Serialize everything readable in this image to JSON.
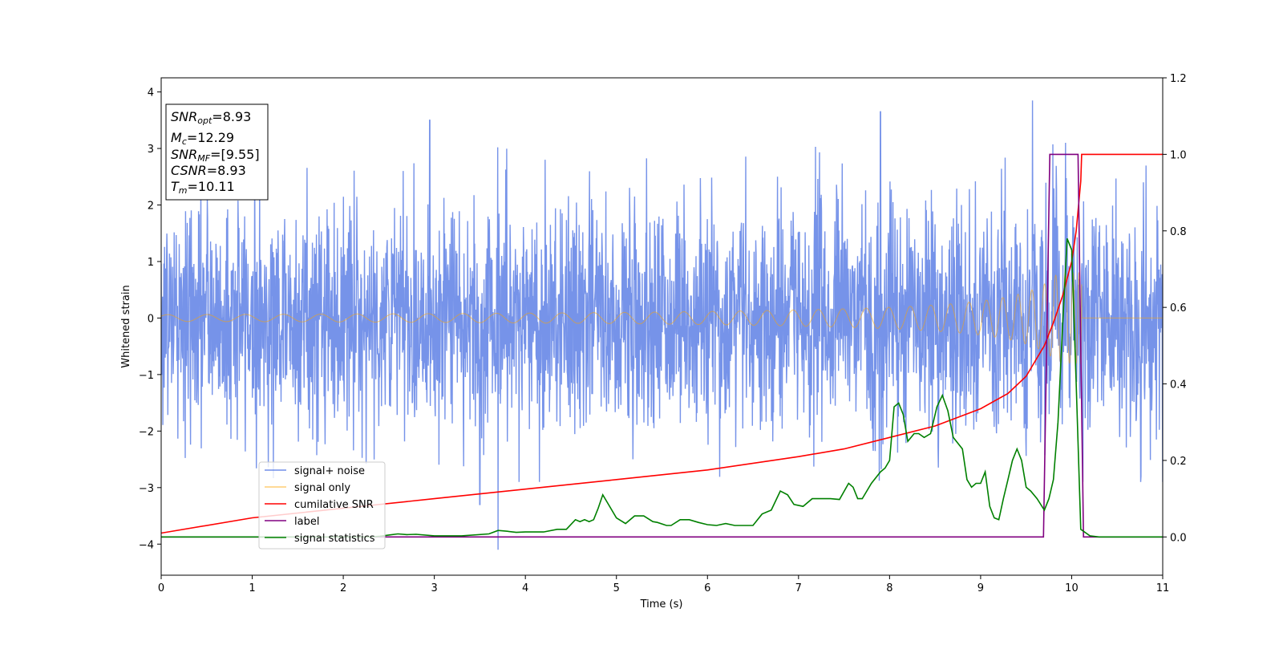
{
  "chart_data": {
    "type": "line",
    "xlabel": "Time (s)",
    "ylabel": "Whitened strain",
    "xlim": [
      0,
      11
    ],
    "ylim_left": [
      -4.55,
      4.25
    ],
    "ylim_right": [
      -0.1,
      1.2
    ],
    "x_ticks": [
      "0",
      "1",
      "2",
      "3",
      "4",
      "5",
      "6",
      "7",
      "8",
      "9",
      "10",
      "11"
    ],
    "y_ticks_left": [
      "−4",
      "−3",
      "−2",
      "−1",
      "0",
      "1",
      "2",
      "3",
      "4"
    ],
    "y_ticks_right": [
      "0.0",
      "0.2",
      "0.4",
      "0.6",
      "0.8",
      "1.0",
      "1.2"
    ],
    "legend_position": "lower-left",
    "annotation": [
      {
        "var": "SNR",
        "sub": "opt",
        "value": "=8.93"
      },
      {
        "var": "M",
        "sub": "c",
        "value": "=12.29"
      },
      {
        "var": "SNR",
        "sub": "MF",
        "value": "=[9.55]"
      },
      {
        "var": "CSNR",
        "sub": "",
        "value": "=8.93"
      },
      {
        "var": "T",
        "sub": "m",
        "value": "=10.11"
      }
    ],
    "series": [
      {
        "name": "signal+ noise",
        "color": "#4169e1",
        "axis": "left",
        "kind": "noise",
        "noise_std": 1.0,
        "notable_peaks": [
          [
            2.95,
            3.5
          ],
          [
            7.9,
            3.65
          ],
          [
            9.57,
            3.85
          ],
          [
            3.7,
            -4.1
          ],
          [
            3.5,
            -3.3
          ]
        ]
      },
      {
        "name": "signal only",
        "color": "#ffa500",
        "axis": "left",
        "kind": "chirp",
        "merger_time": 10.11,
        "peak_amplitude": 0.8
      },
      {
        "name": "cumilative SNR",
        "color": "#ff0000",
        "axis": "right",
        "x": [
          0,
          1,
          2,
          3,
          4,
          5,
          6,
          7,
          7.5,
          8,
          8.5,
          9,
          9.3,
          9.5,
          9.7,
          9.8,
          9.9,
          10.0,
          10.05,
          10.1,
          10.11,
          11
        ],
        "y": [
          0.01,
          0.05,
          0.075,
          0.1,
          0.125,
          0.15,
          0.175,
          0.21,
          0.23,
          0.26,
          0.29,
          0.335,
          0.375,
          0.42,
          0.5,
          0.56,
          0.63,
          0.72,
          0.8,
          0.93,
          1.0,
          1.0
        ]
      },
      {
        "name": "label",
        "color": "#800080",
        "axis": "right",
        "x": [
          0,
          9.69,
          9.76,
          10.07,
          10.13,
          11
        ],
        "y": [
          0,
          0,
          1,
          1,
          0,
          0
        ]
      },
      {
        "name": "signal statistics",
        "color": "#008000",
        "axis": "right",
        "x": [
          0,
          2.3,
          2.4,
          2.5,
          2.6,
          2.7,
          2.8,
          3.0,
          3.3,
          3.6,
          3.7,
          3.8,
          3.9,
          4.0,
          4.2,
          4.35,
          4.45,
          4.55,
          4.6,
          4.65,
          4.7,
          4.75,
          4.8,
          4.85,
          4.9,
          5.0,
          5.1,
          5.2,
          5.3,
          5.4,
          5.45,
          5.55,
          5.6,
          5.7,
          5.8,
          5.9,
          6.0,
          6.1,
          6.2,
          6.3,
          6.4,
          6.5,
          6.6,
          6.7,
          6.8,
          6.88,
          6.95,
          7.05,
          7.15,
          7.2,
          7.28,
          7.35,
          7.45,
          7.55,
          7.6,
          7.65,
          7.7,
          7.8,
          7.9,
          7.95,
          8.0,
          8.05,
          8.1,
          8.15,
          8.2,
          8.27,
          8.32,
          8.38,
          8.45,
          8.52,
          8.58,
          8.64,
          8.7,
          8.8,
          8.85,
          8.9,
          8.95,
          9.0,
          9.05,
          9.1,
          9.15,
          9.2,
          9.25,
          9.3,
          9.35,
          9.4,
          9.45,
          9.5,
          9.55,
          9.62,
          9.7,
          9.75,
          9.8,
          9.85,
          9.9,
          9.95,
          10.0,
          10.05,
          10.1,
          10.2,
          10.3,
          11
        ],
        "y": [
          0,
          0,
          0.002,
          0.005,
          0.008,
          0.006,
          0.007,
          0.003,
          0.003,
          0.008,
          0.017,
          0.015,
          0.012,
          0.013,
          0.013,
          0.02,
          0.02,
          0.045,
          0.04,
          0.045,
          0.04,
          0.045,
          0.075,
          0.11,
          0.09,
          0.05,
          0.035,
          0.055,
          0.055,
          0.04,
          0.038,
          0.03,
          0.03,
          0.045,
          0.045,
          0.038,
          0.032,
          0.03,
          0.035,
          0.03,
          0.03,
          0.03,
          0.06,
          0.07,
          0.12,
          0.11,
          0.085,
          0.08,
          0.1,
          0.1,
          0.1,
          0.1,
          0.098,
          0.14,
          0.13,
          0.1,
          0.1,
          0.14,
          0.17,
          0.18,
          0.2,
          0.34,
          0.35,
          0.32,
          0.25,
          0.27,
          0.27,
          0.26,
          0.27,
          0.34,
          0.37,
          0.33,
          0.26,
          0.23,
          0.15,
          0.13,
          0.14,
          0.14,
          0.17,
          0.08,
          0.05,
          0.045,
          0.1,
          0.15,
          0.2,
          0.23,
          0.2,
          0.13,
          0.12,
          0.1,
          0.07,
          0.1,
          0.15,
          0.3,
          0.55,
          0.78,
          0.75,
          0.4,
          0.02,
          0.003,
          0,
          0
        ]
      }
    ]
  }
}
